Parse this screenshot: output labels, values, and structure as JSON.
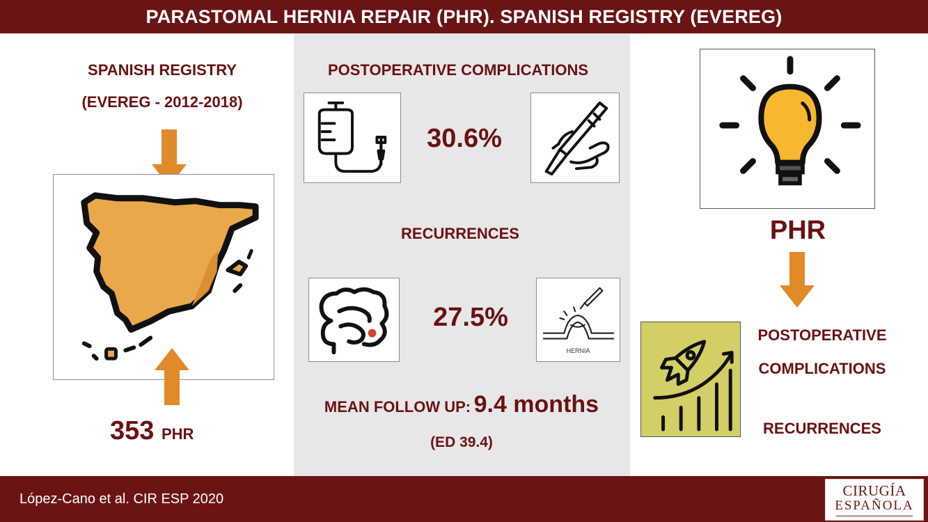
{
  "header": {
    "title": "PARASTOMAL HERNIA REPAIR (PHR). SPANISH REGISTRY (EVEREG)"
  },
  "left": {
    "registry_line1": "SPANISH REGISTRY",
    "registry_line2": "(EVEREG - 2012-2018)",
    "count": "353",
    "count_unit": "PHR",
    "map_icon": "spain-map-icon",
    "arrow_color": "#e08a2a"
  },
  "middle": {
    "complications_heading": "POSTOPERATIVE COMPLICATIONS",
    "complications_value": "30.6%",
    "recurrences_heading": "RECURRENCES",
    "recurrences_value": "27.5%",
    "followup_label": "MEAN FOLLOW UP:",
    "followup_value": "9.4 months",
    "followup_sd": "(ED 39.4)",
    "hernia_caption": "HERNIA",
    "icons": [
      "iv-drip-icon",
      "scalpel-hand-icon",
      "colon-icon",
      "hernia-icon"
    ]
  },
  "right": {
    "idea_label": "PHR",
    "outcome_line1": "POSTOPERATIVE",
    "outcome_line2": "COMPLICATIONS",
    "outcome_line3": "RECURRENCES",
    "icons": [
      "lightbulb-icon",
      "rocket-growth-icon"
    ]
  },
  "footer": {
    "citation": "López-Cano et al. CIR ESP 2020",
    "journal_line1": "CIRUGÍA",
    "journal_line2": "ESPAÑOLA"
  },
  "colors": {
    "brand": "#6b1414",
    "text": "#6b1111",
    "panel": "#e7e7e7",
    "accent": "#e08a2a"
  }
}
